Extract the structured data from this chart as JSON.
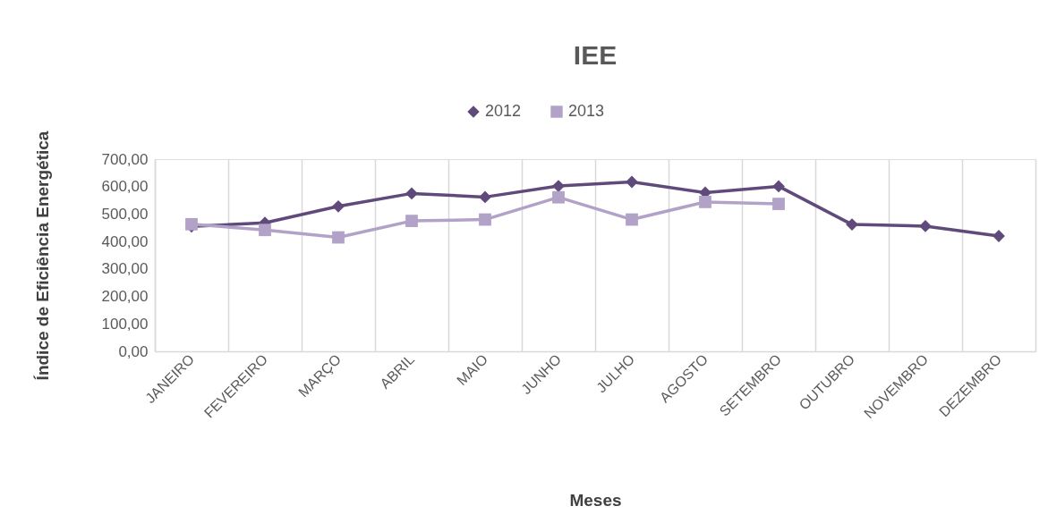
{
  "chart_data": {
    "type": "line",
    "title": "IEE",
    "xlabel": "Meses",
    "ylabel": "Índice de Eficiência Energética",
    "categories": [
      "JANEIRO",
      "FEVEREIRO",
      "MARÇO",
      "ABRIL",
      "MAIO",
      "JUNHO",
      "JULHO",
      "AGOSTO",
      "SETEMBRO",
      "OUTUBRO",
      "NOVEMBRO",
      "DEZEMBRO"
    ],
    "series": [
      {
        "name": "2012",
        "color": "#604a7b",
        "marker": "diamond",
        "values": [
          455,
          468,
          528,
          575,
          562,
          602,
          617,
          578,
          601,
          462,
          456,
          420
        ]
      },
      {
        "name": "2013",
        "color": "#b3a2c7",
        "marker": "square",
        "values": [
          463,
          442,
          415,
          475,
          480,
          561,
          480,
          544,
          537,
          null,
          null,
          null
        ]
      }
    ],
    "ylim": [
      0,
      700
    ],
    "yticks": [
      {
        "value": 0,
        "label": "0,00"
      },
      {
        "value": 100,
        "label": "100,00"
      },
      {
        "value": 200,
        "label": "200,00"
      },
      {
        "value": 300,
        "label": "300,00"
      },
      {
        "value": 400,
        "label": "400,00"
      },
      {
        "value": 500,
        "label": "500,00"
      },
      {
        "value": 600,
        "label": "600,00"
      },
      {
        "value": 700,
        "label": "700,00"
      }
    ],
    "grid": "x",
    "legend": "top",
    "line_style": "solid"
  }
}
